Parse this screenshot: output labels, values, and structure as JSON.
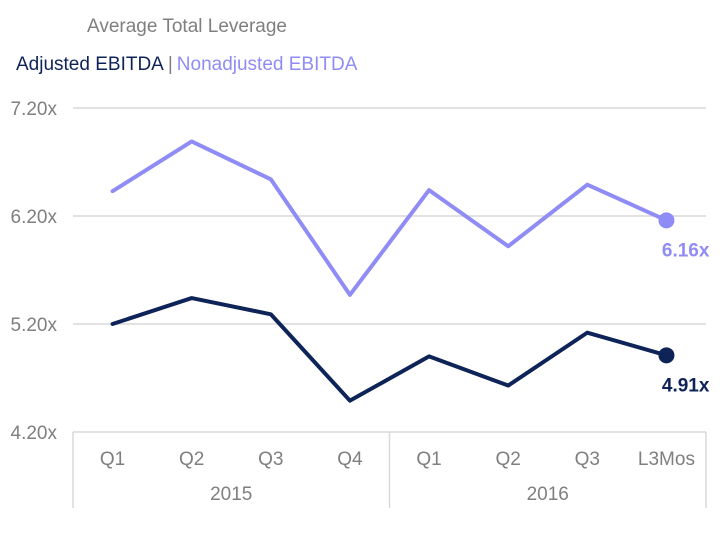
{
  "chart_data": {
    "type": "line",
    "title": "Average Total Leverage",
    "categories": [
      "Q1",
      "Q2",
      "Q3",
      "Q4",
      "Q1",
      "Q2",
      "Q3",
      "L3Mos"
    ],
    "groups": [
      {
        "label": "2015",
        "span": 4
      },
      {
        "label": "2016",
        "span": 4
      }
    ],
    "series": [
      {
        "name": "Adjusted EBITDA",
        "color": "#0e2357",
        "values": [
          5.2,
          5.44,
          5.29,
          4.49,
          4.9,
          4.63,
          5.12,
          4.91
        ],
        "end_label": "4.91x"
      },
      {
        "name": "Nonadjusted EBITDA",
        "color": "#8f8cf5",
        "values": [
          6.43,
          6.89,
          6.54,
          5.47,
          6.44,
          5.92,
          6.49,
          6.16
        ],
        "end_label": "6.16x"
      }
    ],
    "yticks": [
      "7.20x",
      "6.20x",
      "5.20x",
      "4.20x"
    ],
    "ylim": [
      4.2,
      7.2
    ],
    "legend_separator": "|",
    "grid": true,
    "gridline_color": "#d9d9d9"
  }
}
